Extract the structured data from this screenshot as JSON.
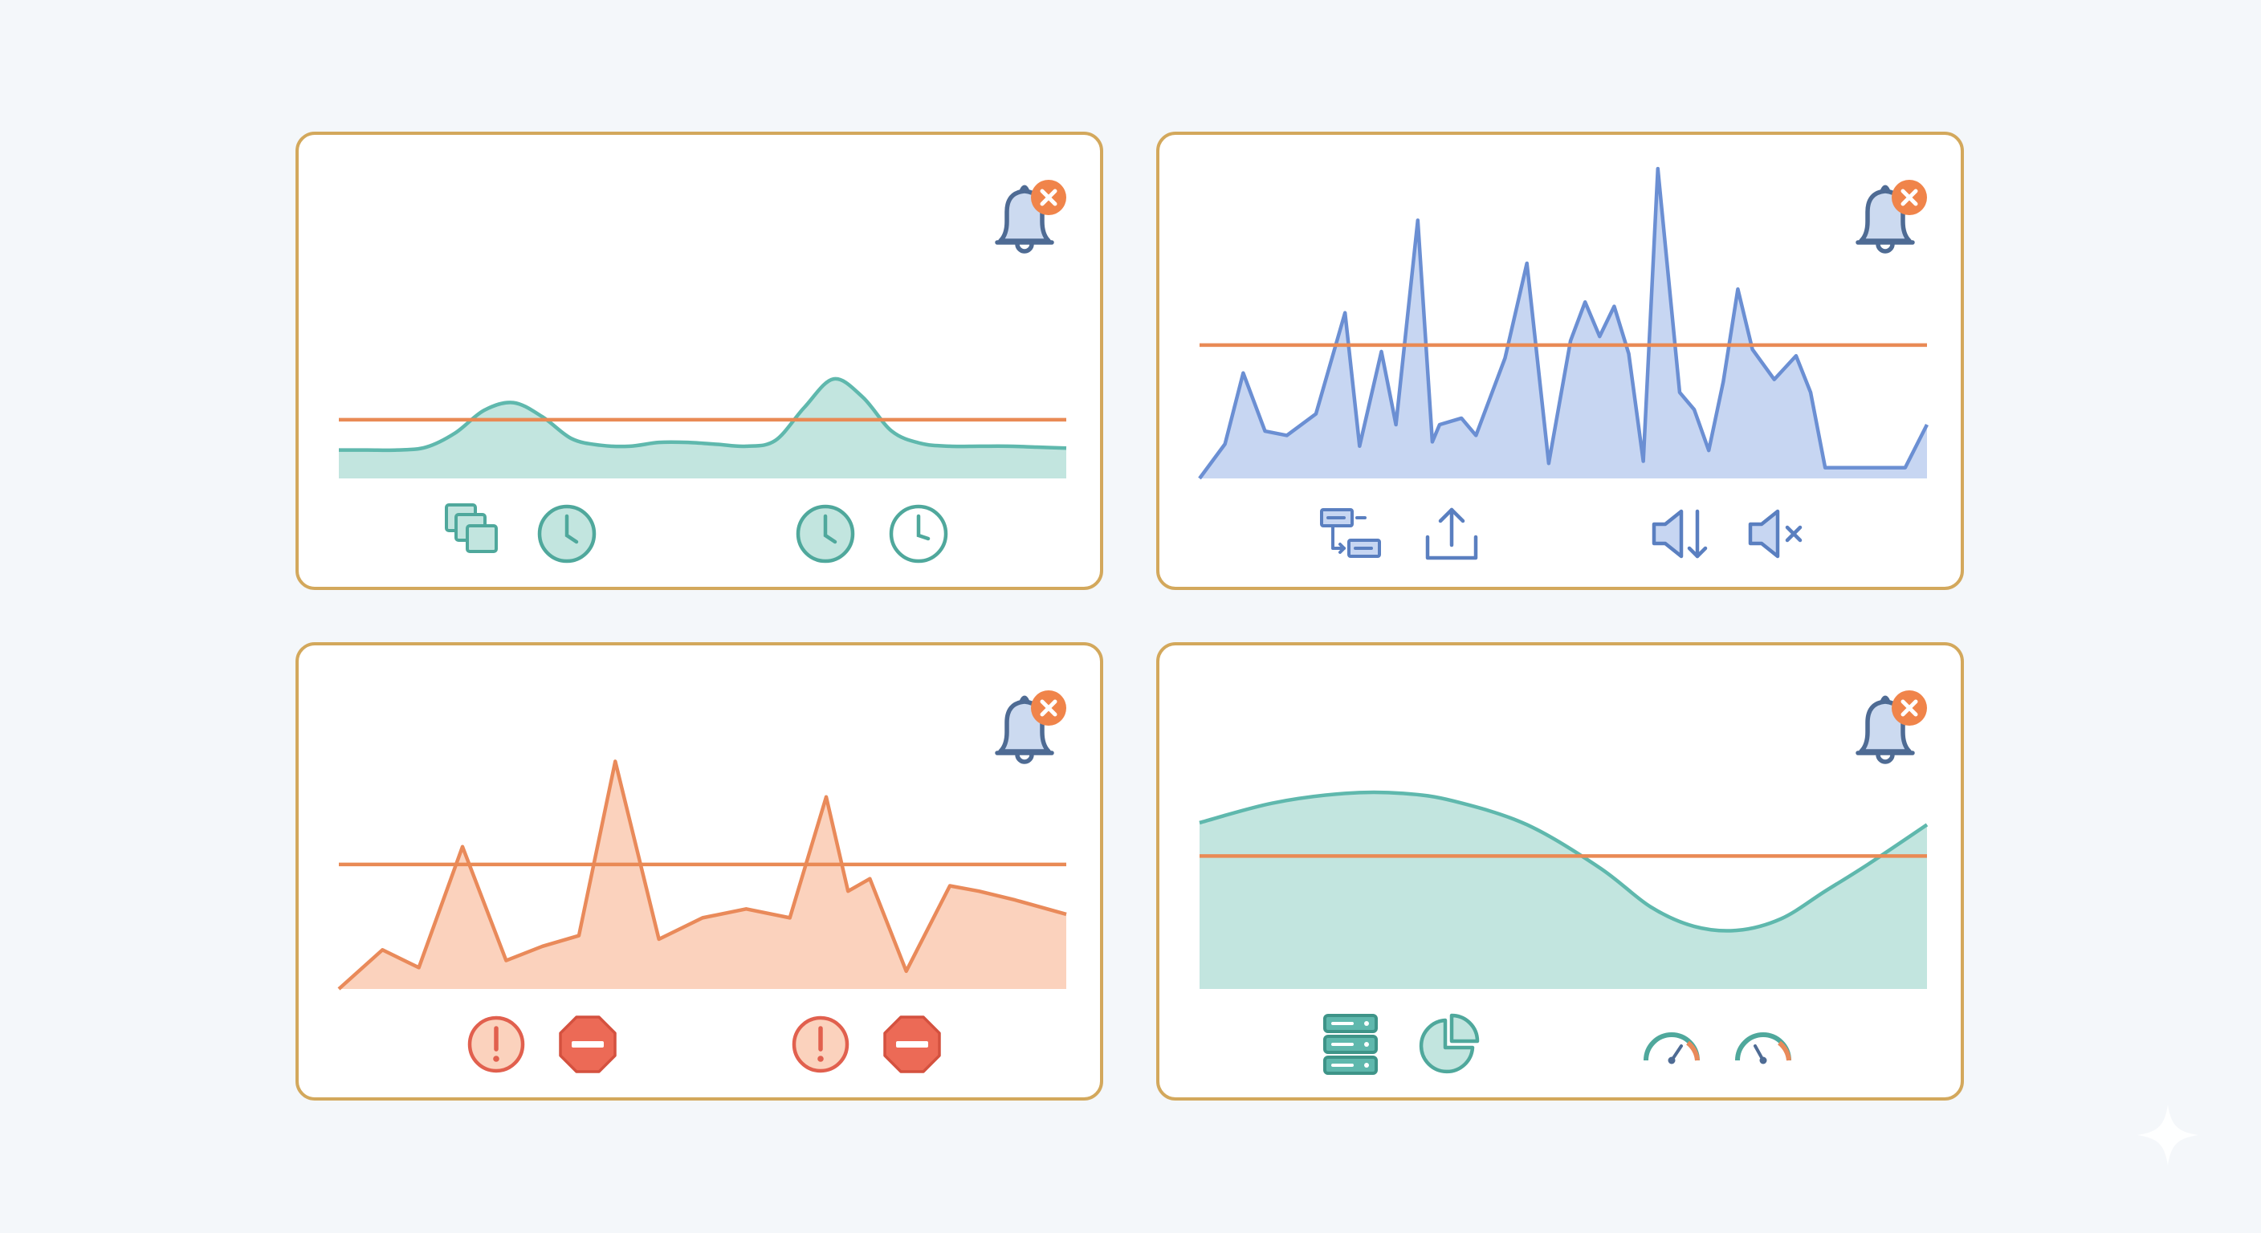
{
  "colors": {
    "border": "#d3a85c",
    "threshold": "#e98a55",
    "teal_line": "#5fb8ad",
    "teal_fill": "#c2e5df",
    "blue_line": "#6b8fd3",
    "blue_fill": "#c7d6f2",
    "orange_line": "#e98a5a",
    "orange_fill": "#fbd2bd",
    "bell_stroke": "#4e6b94",
    "bell_fill": "#ccdaf0",
    "bell_badge": "#f0844a",
    "icon_teal": "#4fa89c",
    "icon_blue": "#5a7fc0",
    "icon_red": "#e1604e"
  },
  "panels": [
    {
      "name": "panel-1",
      "alert_icon": "bell-alert-icon",
      "icons": [
        "copy-stack-icon",
        "clock-icon",
        "clock-icon",
        "clock-icon"
      ],
      "chart_data": {
        "type": "area",
        "threshold": 62,
        "ylim": [
          0,
          100
        ],
        "x": [
          0,
          4,
          8,
          12,
          16,
          20,
          24,
          28,
          32,
          36,
          40,
          44,
          48,
          52,
          56,
          60,
          64,
          68,
          72,
          76,
          80,
          84,
          88,
          92,
          96,
          100
        ],
        "values": [
          30,
          30,
          30,
          33,
          48,
          72,
          80,
          65,
          42,
          35,
          34,
          38,
          38,
          36,
          34,
          40,
          75,
          105,
          86,
          50,
          37,
          34,
          34,
          34,
          33,
          32
        ]
      }
    },
    {
      "name": "panel-2",
      "alert_icon": "bell-alert-icon",
      "icons": [
        "workflow-transfer-icon",
        "upload-icon",
        "volume-down-icon",
        "mute-icon"
      ],
      "chart_data": {
        "type": "area",
        "threshold": 62,
        "ylim": [
          0,
          100
        ],
        "x": [
          0,
          3.5,
          6,
          9,
          12,
          16,
          20,
          22,
          25,
          27,
          30,
          32,
          33,
          36,
          38,
          42,
          45,
          48,
          51,
          53,
          55,
          57,
          59,
          61,
          63,
          66,
          68,
          70,
          72,
          74,
          76,
          79,
          82,
          84,
          86,
          88,
          91,
          94,
          97,
          100
        ],
        "values": [
          0,
          16,
          49,
          22,
          20,
          30,
          77,
          15,
          59,
          25,
          120,
          17,
          25,
          28,
          20,
          56,
          100,
          7,
          64,
          82,
          66,
          80,
          58,
          8,
          144,
          40,
          32,
          13,
          45,
          88,
          60,
          46,
          57,
          40,
          5,
          5,
          5,
          5,
          5,
          25
        ]
      }
    },
    {
      "name": "panel-3",
      "alert_icon": "bell-alert-icon",
      "icons": [
        "alert-circle-icon",
        "stop-octagon-icon",
        "alert-circle-icon",
        "stop-octagon-icon"
      ],
      "chart_data": {
        "type": "area",
        "threshold": 70,
        "ylim": [
          0,
          130
        ],
        "x": [
          0,
          6,
          11,
          17,
          23,
          28,
          33,
          38,
          44,
          50,
          56,
          62,
          67,
          70,
          73,
          78,
          84,
          88,
          93,
          100
        ],
        "values": [
          0,
          22,
          12,
          80,
          16,
          24,
          30,
          128,
          28,
          40,
          45,
          40,
          108,
          55,
          62,
          10,
          58,
          55,
          50,
          42
        ]
      }
    },
    {
      "name": "panel-4",
      "alert_icon": "bell-alert-icon",
      "icons": [
        "server-stack-icon",
        "pie-chart-icon",
        "gauge-icon",
        "gauge-icon"
      ],
      "chart_data": {
        "type": "area",
        "threshold": 68,
        "ylim": [
          0,
          110
        ],
        "x": [
          0,
          10,
          20,
          28,
          35,
          45,
          55,
          62,
          68,
          74,
          80,
          86,
          92,
          100
        ],
        "values": [
          85,
          95,
          100,
          100,
          96,
          84,
          62,
          42,
          32,
          30,
          36,
          50,
          64,
          84
        ]
      }
    }
  ],
  "watermark_icon": "sparkle-icon"
}
